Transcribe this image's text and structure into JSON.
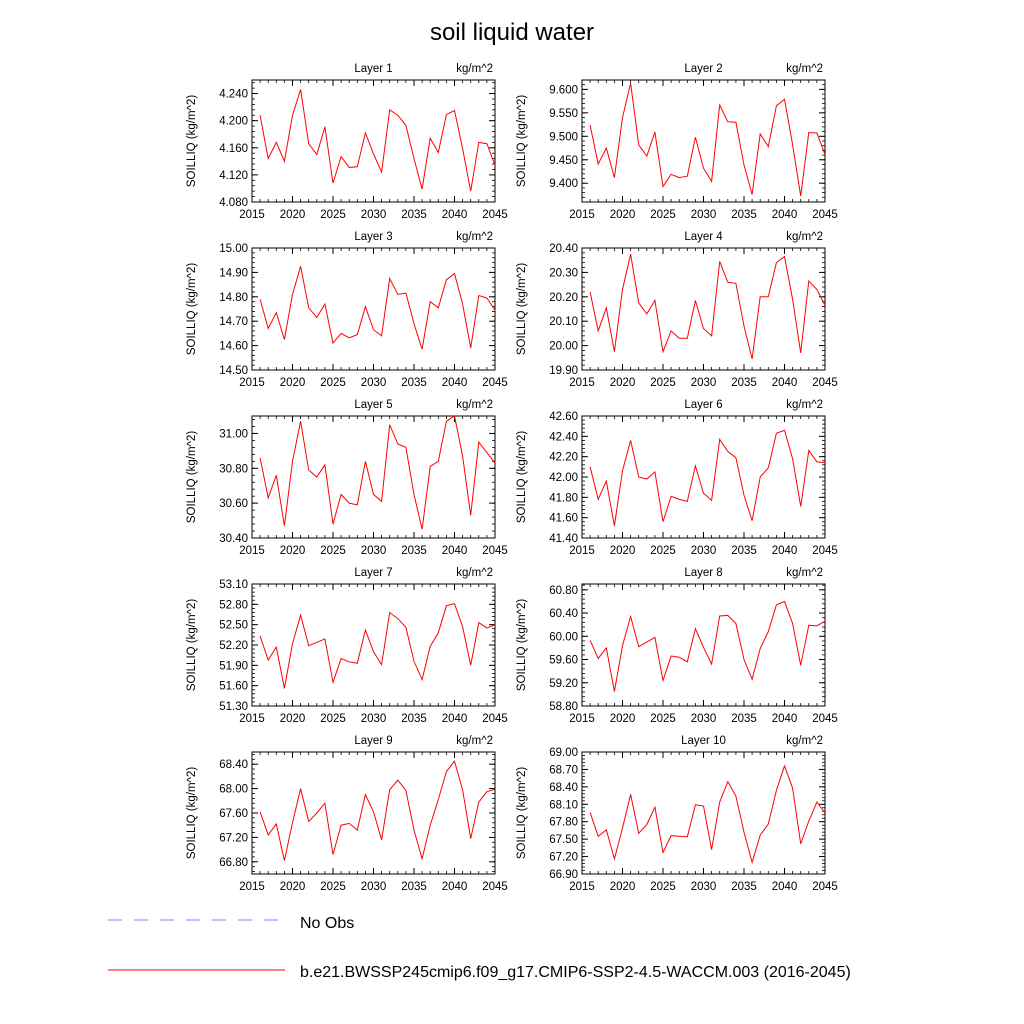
{
  "figure_title": "soil liquid water",
  "legend": [
    {
      "label": "No Obs",
      "color": "#8080ff",
      "style": "dashed"
    },
    {
      "label": "b.e21.BWSSP245cmip6.f09_g17.CMIP6-SSP2-4.5-WACCM.003 (2016-2045)",
      "color": "#ff0000",
      "style": "solid"
    }
  ],
  "chart_data": [
    {
      "type": "line",
      "title": "Layer 1",
      "units": "kg/m^2",
      "ylabel": "SOILLIQ  (kg/m^2)",
      "xlim": [
        2015,
        2045
      ],
      "xticks": [
        "2015",
        "2020",
        "2025",
        "2030",
        "2035",
        "2040",
        "2045"
      ],
      "ylim": [
        4.08,
        4.26
      ],
      "yticks": [
        "4.080",
        "4.120",
        "4.160",
        "4.200",
        "4.240"
      ],
      "ytick_values": [
        4.08,
        4.12,
        4.16,
        4.2,
        4.24
      ],
      "x": [
        2016,
        2017,
        2018,
        2019,
        2020,
        2021,
        2022,
        2023,
        2024,
        2025,
        2026,
        2027,
        2028,
        2029,
        2030,
        2031,
        2032,
        2033,
        2034,
        2035,
        2036,
        2037,
        2038,
        2039,
        2040,
        2041,
        2042,
        2043,
        2044,
        2045
      ],
      "series": [
        {
          "name": "b.e21.BWSSP245cmip6.f09_g17.CMIP6-SSP2-4.5-WACCM.003",
          "color": "#ff0000",
          "values": [
            4.208,
            4.144,
            4.168,
            4.14,
            4.208,
            4.246,
            4.166,
            4.15,
            4.191,
            4.108,
            4.147,
            4.131,
            4.132,
            4.182,
            4.151,
            4.124,
            4.216,
            4.208,
            4.193,
            4.144,
            4.099,
            4.174,
            4.153,
            4.209,
            4.215,
            4.159,
            4.096,
            4.168,
            4.166,
            4.134
          ]
        }
      ]
    },
    {
      "type": "line",
      "title": "Layer 2",
      "units": "kg/m^2",
      "ylabel": "SOILLIQ  (kg/m^2)",
      "xlim": [
        2015,
        2045
      ],
      "xticks": [
        "2015",
        "2020",
        "2025",
        "2030",
        "2035",
        "2040",
        "2045"
      ],
      "ylim": [
        9.36,
        9.62
      ],
      "yticks": [
        "9.400",
        "9.450",
        "9.500",
        "9.550",
        "9.600"
      ],
      "ytick_values": [
        9.4,
        9.45,
        9.5,
        9.55,
        9.6
      ],
      "x": [
        2016,
        2017,
        2018,
        2019,
        2020,
        2021,
        2022,
        2023,
        2024,
        2025,
        2026,
        2027,
        2028,
        2029,
        2030,
        2031,
        2032,
        2033,
        2034,
        2035,
        2036,
        2037,
        2038,
        2039,
        2040,
        2041,
        2042,
        2043,
        2044,
        2045
      ],
      "series": [
        {
          "name": "b.e21.BWSSP245cmip6.f09_g17.CMIP6-SSP2-4.5-WACCM.003",
          "color": "#ff0000",
          "values": [
            9.524,
            9.441,
            9.475,
            9.412,
            9.54,
            9.613,
            9.482,
            9.458,
            9.509,
            9.393,
            9.419,
            9.412,
            9.415,
            9.498,
            9.432,
            9.404,
            9.567,
            9.531,
            9.53,
            9.439,
            9.376,
            9.505,
            9.478,
            9.565,
            9.579,
            9.482,
            9.373,
            9.508,
            9.507,
            9.461
          ]
        }
      ]
    },
    {
      "type": "line",
      "title": "Layer 3",
      "units": "kg/m^2",
      "ylabel": "SOILLIQ  (kg/m^2)",
      "xlim": [
        2015,
        2045
      ],
      "xticks": [
        "2015",
        "2020",
        "2025",
        "2030",
        "2035",
        "2040",
        "2045"
      ],
      "ylim": [
        14.5,
        15.0
      ],
      "yticks": [
        "14.50",
        "14.60",
        "14.70",
        "14.80",
        "14.90",
        "15.00"
      ],
      "ytick_values": [
        14.5,
        14.6,
        14.7,
        14.8,
        14.9,
        15.0
      ],
      "x": [
        2016,
        2017,
        2018,
        2019,
        2020,
        2021,
        2022,
        2023,
        2024,
        2025,
        2026,
        2027,
        2028,
        2029,
        2030,
        2031,
        2032,
        2033,
        2034,
        2035,
        2036,
        2037,
        2038,
        2039,
        2040,
        2041,
        2042,
        2043,
        2044,
        2045
      ],
      "series": [
        {
          "name": "b.e21.BWSSP245cmip6.f09_g17.CMIP6-SSP2-4.5-WACCM.003",
          "color": "#ff0000",
          "values": [
            14.79,
            14.67,
            14.735,
            14.625,
            14.81,
            14.925,
            14.755,
            14.715,
            14.77,
            14.61,
            14.65,
            14.632,
            14.645,
            14.76,
            14.665,
            14.64,
            14.875,
            14.81,
            14.815,
            14.69,
            14.585,
            14.78,
            14.755,
            14.87,
            14.895,
            14.77,
            14.59,
            14.805,
            14.795,
            14.745
          ]
        }
      ]
    },
    {
      "type": "line",
      "title": "Layer 4",
      "units": "kg/m^2",
      "ylabel": "SOILLIQ  (kg/m^2)",
      "xlim": [
        2015,
        2045
      ],
      "xticks": [
        "2015",
        "2020",
        "2025",
        "2030",
        "2035",
        "2040",
        "2045"
      ],
      "ylim": [
        19.9,
        20.4
      ],
      "yticks": [
        "19.90",
        "20.00",
        "20.10",
        "20.20",
        "20.30",
        "20.40"
      ],
      "ytick_values": [
        19.9,
        20.0,
        20.1,
        20.2,
        20.3,
        20.4
      ],
      "x": [
        2016,
        2017,
        2018,
        2019,
        2020,
        2021,
        2022,
        2023,
        2024,
        2025,
        2026,
        2027,
        2028,
        2029,
        2030,
        2031,
        2032,
        2033,
        2034,
        2035,
        2036,
        2037,
        2038,
        2039,
        2040,
        2041,
        2042,
        2043,
        2044,
        2045
      ],
      "series": [
        {
          "name": "b.e21.BWSSP245cmip6.f09_g17.CMIP6-SSP2-4.5-WACCM.003",
          "color": "#ff0000",
          "values": [
            20.22,
            20.06,
            20.155,
            19.975,
            20.23,
            20.375,
            20.175,
            20.13,
            20.185,
            19.975,
            20.06,
            20.03,
            20.03,
            20.185,
            20.07,
            20.04,
            20.345,
            20.26,
            20.255,
            20.08,
            19.945,
            20.2,
            20.2,
            20.34,
            20.365,
            20.19,
            19.97,
            20.265,
            20.23,
            20.165
          ]
        }
      ]
    },
    {
      "type": "line",
      "title": "Layer 5",
      "units": "kg/m^2",
      "ylabel": "SOILLIQ  (kg/m^2)",
      "xlim": [
        2015,
        2045
      ],
      "xticks": [
        "2015",
        "2020",
        "2025",
        "2030",
        "2035",
        "2040",
        "2045"
      ],
      "ylim": [
        30.4,
        31.1
      ],
      "yticks": [
        "30.40",
        "30.60",
        "30.80",
        "31.00"
      ],
      "ytick_values": [
        30.4,
        30.6,
        30.8,
        31.0
      ],
      "x": [
        2016,
        2017,
        2018,
        2019,
        2020,
        2021,
        2022,
        2023,
        2024,
        2025,
        2026,
        2027,
        2028,
        2029,
        2030,
        2031,
        2032,
        2033,
        2034,
        2035,
        2036,
        2037,
        2038,
        2039,
        2040,
        2041,
        2042,
        2043,
        2044,
        2045
      ],
      "series": [
        {
          "name": "b.e21.BWSSP245cmip6.f09_g17.CMIP6-SSP2-4.5-WACCM.003",
          "color": "#ff0000",
          "values": [
            30.86,
            30.63,
            30.76,
            30.47,
            30.84,
            31.07,
            30.79,
            30.75,
            30.82,
            30.48,
            30.65,
            30.6,
            30.59,
            30.84,
            30.65,
            30.61,
            31.05,
            30.94,
            30.92,
            30.65,
            30.45,
            30.81,
            30.84,
            31.07,
            31.1,
            30.87,
            30.53,
            30.95,
            30.89,
            30.83
          ]
        }
      ]
    },
    {
      "type": "line",
      "title": "Layer 6",
      "units": "kg/m^2",
      "ylabel": "SOILLIQ  (kg/m^2)",
      "xlim": [
        2015,
        2045
      ],
      "xticks": [
        "2015",
        "2020",
        "2025",
        "2030",
        "2035",
        "2040",
        "2045"
      ],
      "ylim": [
        41.4,
        42.6
      ],
      "yticks": [
        "41.40",
        "41.60",
        "41.80",
        "42.00",
        "42.20",
        "42.40",
        "42.60"
      ],
      "ytick_values": [
        41.4,
        41.6,
        41.8,
        42.0,
        42.2,
        42.4,
        42.6
      ],
      "x": [
        2016,
        2017,
        2018,
        2019,
        2020,
        2021,
        2022,
        2023,
        2024,
        2025,
        2026,
        2027,
        2028,
        2029,
        2030,
        2031,
        2032,
        2033,
        2034,
        2035,
        2036,
        2037,
        2038,
        2039,
        2040,
        2041,
        2042,
        2043,
        2044,
        2045
      ],
      "series": [
        {
          "name": "b.e21.BWSSP245cmip6.f09_g17.CMIP6-SSP2-4.5-WACCM.003",
          "color": "#ff0000",
          "values": [
            42.1,
            41.78,
            41.96,
            41.52,
            42.06,
            42.36,
            42.0,
            41.98,
            42.05,
            41.56,
            41.81,
            41.78,
            41.76,
            42.11,
            41.84,
            41.77,
            42.37,
            42.25,
            42.19,
            41.82,
            41.57,
            42.0,
            42.09,
            42.43,
            42.46,
            42.18,
            41.71,
            42.26,
            42.15,
            42.14
          ]
        }
      ]
    },
    {
      "type": "line",
      "title": "Layer 7",
      "units": "kg/m^2",
      "ylabel": "SOILLIQ  (kg/m^2)",
      "xlim": [
        2015,
        2045
      ],
      "xticks": [
        "2015",
        "2020",
        "2025",
        "2030",
        "2035",
        "2040",
        "2045"
      ],
      "ylim": [
        51.3,
        53.1
      ],
      "yticks": [
        "51.30",
        "51.60",
        "51.90",
        "52.20",
        "52.50",
        "52.80",
        "53.10"
      ],
      "ytick_values": [
        51.3,
        51.6,
        51.9,
        52.2,
        52.5,
        52.8,
        53.1
      ],
      "x": [
        2016,
        2017,
        2018,
        2019,
        2020,
        2021,
        2022,
        2023,
        2024,
        2025,
        2026,
        2027,
        2028,
        2029,
        2030,
        2031,
        2032,
        2033,
        2034,
        2035,
        2036,
        2037,
        2038,
        2039,
        2040,
        2041,
        2042,
        2043,
        2044,
        2045
      ],
      "series": [
        {
          "name": "b.e21.BWSSP245cmip6.f09_g17.CMIP6-SSP2-4.5-WACCM.003",
          "color": "#ff0000",
          "values": [
            52.33,
            51.98,
            52.17,
            51.56,
            52.22,
            52.64,
            52.19,
            52.24,
            52.29,
            51.65,
            52.0,
            51.95,
            51.93,
            52.42,
            52.1,
            51.91,
            52.68,
            52.59,
            52.46,
            51.96,
            51.69,
            52.18,
            52.38,
            52.78,
            52.81,
            52.47,
            51.9,
            52.53,
            52.45,
            52.5
          ]
        }
      ]
    },
    {
      "type": "line",
      "title": "Layer 8",
      "units": "kg/m^2",
      "ylabel": "SOILLIQ  (kg/m^2)",
      "xlim": [
        2015,
        2045
      ],
      "xticks": [
        "2015",
        "2020",
        "2025",
        "2030",
        "2035",
        "2040",
        "2045"
      ],
      "ylim": [
        58.8,
        60.9
      ],
      "yticks": [
        "58.80",
        "59.20",
        "59.60",
        "60.00",
        "60.40",
        "60.80"
      ],
      "ytick_values": [
        58.8,
        59.2,
        59.6,
        60.0,
        60.4,
        60.8
      ],
      "x": [
        2016,
        2017,
        2018,
        2019,
        2020,
        2021,
        2022,
        2023,
        2024,
        2025,
        2026,
        2027,
        2028,
        2029,
        2030,
        2031,
        2032,
        2033,
        2034,
        2035,
        2036,
        2037,
        2038,
        2039,
        2040,
        2041,
        2042,
        2043,
        2044,
        2045
      ],
      "series": [
        {
          "name": "b.e21.BWSSP245cmip6.f09_g17.CMIP6-SSP2-4.5-WACCM.003",
          "color": "#ff0000",
          "values": [
            59.93,
            59.62,
            59.8,
            59.05,
            59.84,
            60.34,
            59.82,
            59.9,
            59.98,
            59.24,
            59.66,
            59.64,
            59.56,
            60.13,
            59.81,
            59.52,
            60.35,
            60.36,
            60.22,
            59.6,
            59.26,
            59.79,
            60.08,
            60.54,
            60.6,
            60.22,
            59.5,
            60.19,
            60.18,
            60.26
          ]
        }
      ]
    },
    {
      "type": "line",
      "title": "Layer 9",
      "units": "kg/m^2",
      "ylabel": "SOILLIQ  (kg/m^2)",
      "xlim": [
        2015,
        2045
      ],
      "xticks": [
        "2015",
        "2020",
        "2025",
        "2030",
        "2035",
        "2040",
        "2045"
      ],
      "ylim": [
        66.6,
        68.6
      ],
      "yticks": [
        "66.80",
        "67.20",
        "67.60",
        "68.00",
        "68.40"
      ],
      "ytick_values": [
        66.8,
        67.2,
        67.6,
        68.0,
        68.4
      ],
      "x": [
        2016,
        2017,
        2018,
        2019,
        2020,
        2021,
        2022,
        2023,
        2024,
        2025,
        2026,
        2027,
        2028,
        2029,
        2030,
        2031,
        2032,
        2033,
        2034,
        2035,
        2036,
        2037,
        2038,
        2039,
        2040,
        2041,
        2042,
        2043,
        2044,
        2045
      ],
      "series": [
        {
          "name": "b.e21.BWSSP245cmip6.f09_g17.CMIP6-SSP2-4.5-WACCM.003",
          "color": "#ff0000",
          "values": [
            67.62,
            67.24,
            67.42,
            66.82,
            67.44,
            68.0,
            67.46,
            67.6,
            67.76,
            66.92,
            67.4,
            67.43,
            67.32,
            67.9,
            67.62,
            67.16,
            67.98,
            68.14,
            67.97,
            67.32,
            66.85,
            67.4,
            67.82,
            68.28,
            68.45,
            67.98,
            67.18,
            67.78,
            67.95,
            67.99
          ]
        }
      ]
    },
    {
      "type": "line",
      "title": "Layer 10",
      "units": "kg/m^2",
      "ylabel": "SOILLIQ  (kg/m^2)",
      "xlim": [
        2015,
        2045
      ],
      "xticks": [
        "2015",
        "2020",
        "2025",
        "2030",
        "2035",
        "2040",
        "2045"
      ],
      "ylim": [
        66.9,
        69.0
      ],
      "yticks": [
        "66.90",
        "67.20",
        "67.50",
        "67.80",
        "68.10",
        "68.40",
        "68.70",
        "69.00"
      ],
      "ytick_values": [
        66.9,
        67.2,
        67.5,
        67.8,
        68.1,
        68.4,
        68.7,
        69.0
      ],
      "x": [
        2016,
        2017,
        2018,
        2019,
        2020,
        2021,
        2022,
        2023,
        2024,
        2025,
        2026,
        2027,
        2028,
        2029,
        2030,
        2031,
        2032,
        2033,
        2034,
        2035,
        2036,
        2037,
        2038,
        2039,
        2040,
        2041,
        2042,
        2043,
        2044,
        2045
      ],
      "series": [
        {
          "name": "b.e21.BWSSP245cmip6.f09_g17.CMIP6-SSP2-4.5-WACCM.003",
          "color": "#ff0000",
          "values": [
            67.96,
            67.55,
            67.66,
            67.16,
            67.69,
            68.27,
            67.6,
            67.75,
            68.05,
            67.27,
            67.56,
            67.55,
            67.54,
            68.09,
            68.07,
            67.32,
            68.14,
            68.49,
            68.24,
            67.62,
            67.1,
            67.57,
            67.76,
            68.34,
            68.76,
            68.38,
            67.42,
            67.81,
            68.14,
            67.95
          ]
        }
      ]
    }
  ]
}
